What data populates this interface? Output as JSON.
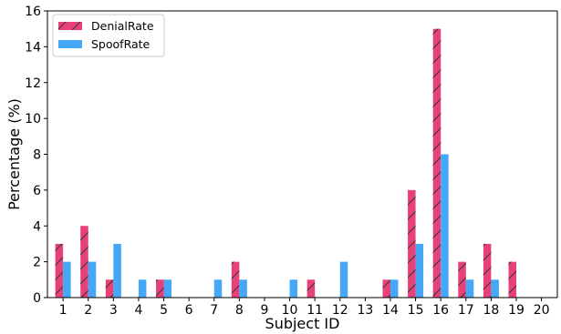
{
  "chart_data": {
    "type": "bar",
    "categories": [
      "1",
      "2",
      "3",
      "4",
      "5",
      "6",
      "7",
      "8",
      "9",
      "10",
      "11",
      "12",
      "13",
      "14",
      "15",
      "16",
      "17",
      "18",
      "19",
      "20"
    ],
    "series": [
      {
        "name": "DenialRate",
        "values": [
          3,
          4,
          1,
          0,
          1,
          0,
          0,
          2,
          0,
          0,
          1,
          0,
          0,
          1,
          6,
          15,
          2,
          3,
          2,
          0
        ],
        "color": "#e8417a",
        "hatch": true
      },
      {
        "name": "SpoofRate",
        "values": [
          2,
          2,
          3,
          1,
          1,
          0,
          1,
          1,
          0,
          1,
          0,
          2,
          0,
          1,
          3,
          8,
          1,
          1,
          0,
          0
        ],
        "color": "#45a7f5",
        "hatch": false
      }
    ],
    "title": "",
    "xlabel": "Subject ID",
    "ylabel": "Percentage (%)",
    "ylim": [
      0,
      16
    ],
    "yticks": [
      0,
      2,
      4,
      6,
      8,
      10,
      12,
      14,
      16
    ],
    "grid": false,
    "legend_position": "top-left"
  }
}
